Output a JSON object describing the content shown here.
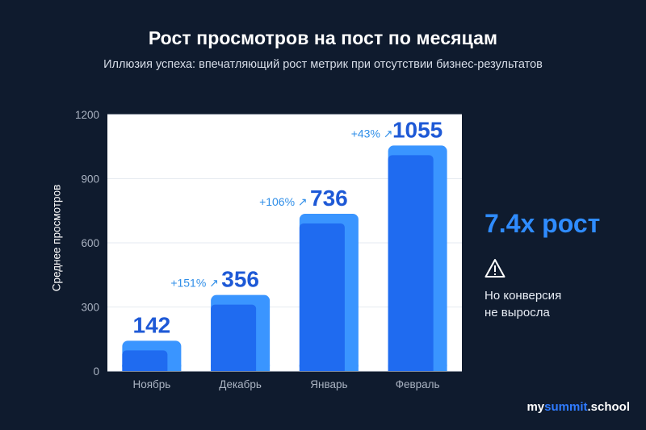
{
  "header": {
    "title": "Рост просмотров на пост по месяцам",
    "subtitle": "Иллюзия успеха: впечатляющий рост метрик при отсутствии бизнес-результатов"
  },
  "chart_data": {
    "type": "bar",
    "categories": [
      "Ноябрь",
      "Декабрь",
      "Январь",
      "Февраль"
    ],
    "values": [
      142,
      356,
      736,
      1055
    ],
    "value_labels": [
      "142",
      "356",
      "736",
      "1055"
    ],
    "growth_labels": [
      "",
      "+151% ↗",
      "+106% ↗",
      "+43% ↗"
    ],
    "ylabel": "Среднее просмотров",
    "xlabel": "",
    "ylim": [
      0,
      1200
    ],
    "yticks": [
      0,
      300,
      600,
      900,
      1200
    ],
    "grid": true,
    "colors": {
      "bar_outer": "#3a95ff",
      "bar_inner": "#1f6bf0",
      "value_text": "#1e59d6",
      "growth_text": "#2f8ee8",
      "plot_bg": "#ffffff",
      "grid": "#e6eaf0"
    }
  },
  "side": {
    "big_text": "7.4x рост",
    "note_line1": "Но конверсия",
    "note_line2": "не выросла",
    "icon": "warning-icon"
  },
  "brand": {
    "prefix": "my",
    "accent": "summit",
    "suffix": ".school"
  }
}
